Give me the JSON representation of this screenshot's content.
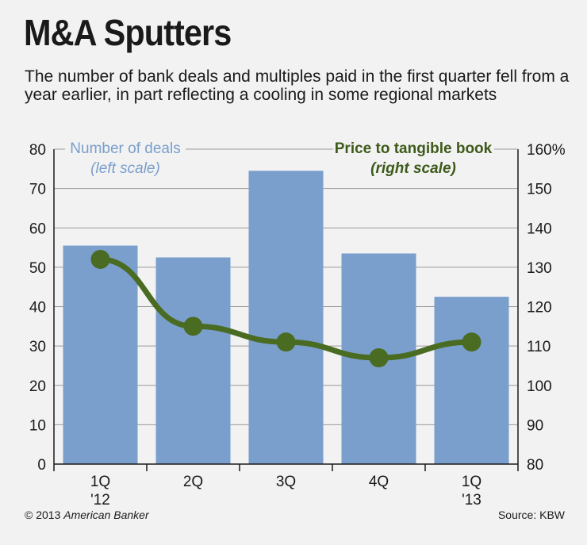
{
  "header": {
    "title": "M&A Sputters",
    "subtitle": "The number of bank deals and multiples paid in the first quarter fell from a year earlier, in part reflecting a cooling in some regional markets"
  },
  "chart_data": {
    "type": "bar+line",
    "categories": [
      [
        "1Q",
        "'12"
      ],
      [
        "2Q",
        ""
      ],
      [
        "3Q",
        ""
      ],
      [
        "4Q",
        ""
      ],
      [
        "1Q",
        "'13"
      ]
    ],
    "series": [
      {
        "name": "Number of deals",
        "axis": "left",
        "type": "bar",
        "values": [
          55.5,
          52.5,
          74.5,
          53.5,
          42.5
        ]
      },
      {
        "name": "Price to tangible book",
        "axis": "right",
        "type": "line",
        "values": [
          132,
          115,
          111,
          107,
          111
        ]
      }
    ],
    "left_axis": {
      "min": 0,
      "max": 80,
      "ticks": [
        "0",
        "10",
        "20",
        "30",
        "40",
        "50",
        "60",
        "70",
        "80"
      ]
    },
    "right_axis": {
      "min": 80,
      "max": 160,
      "ticks": [
        "80",
        "90",
        "100",
        "110",
        "120",
        "130",
        "140",
        "150",
        "160%"
      ]
    },
    "legend": {
      "bar_label": "Number of deals",
      "bar_scale": "(left scale)",
      "line_label": "Price to tangible book",
      "line_scale": "(right scale)"
    },
    "colors": {
      "bar": "#7a9fcc",
      "line": "#4a6b22",
      "grid": "#9a9a9a"
    }
  },
  "footer": {
    "copyright_prefix": "© 2013 ",
    "copyright_org": "American Banker",
    "source": "Source: KBW"
  }
}
